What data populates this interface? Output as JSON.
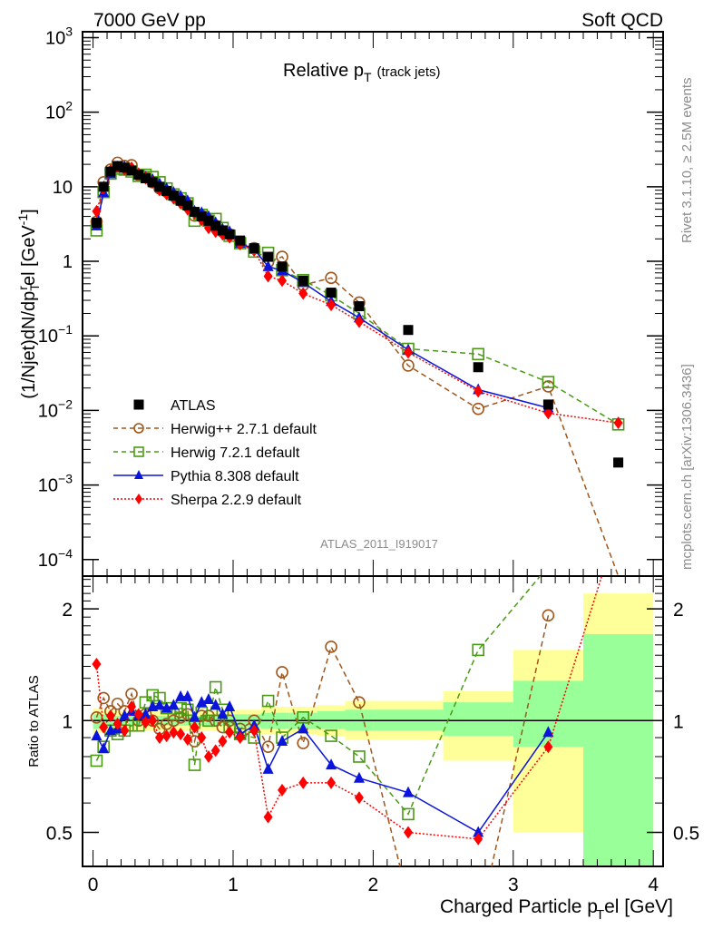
{
  "header": {
    "left": "7000 GeV pp",
    "right": "Soft QCD"
  },
  "side_labels": {
    "rivet": "Rivet 3.1.10, ≥ 2.5M events",
    "mcplots": "mcplots.cern.ch [arXiv:1306.3436]"
  },
  "chart_data": [
    {
      "type": "scatter",
      "panel": "main",
      "title": "Relative p_T (track jets)",
      "title_main": "Relative p",
      "title_sub": "T",
      "title_suffix": "(track jets)",
      "ylabel": "(1/Njet)dN/dp_T^rel [GeV^-1]",
      "yscale": "log",
      "ylim": [
        6e-05,
        1200
      ],
      "xlim": [
        -0.075,
        4.07
      ],
      "yticks": [
        {
          "v": 1000,
          "base": "10",
          "exp": "3"
        },
        {
          "v": 100,
          "base": "10",
          "exp": "2"
        },
        {
          "v": 10,
          "base": "10",
          "exp": ""
        },
        {
          "v": 1,
          "base": "1",
          "exp": ""
        },
        {
          "v": 0.1,
          "base": "10",
          "exp": "−1"
        },
        {
          "v": 0.01,
          "base": "10",
          "exp": "−2"
        },
        {
          "v": 0.001,
          "base": "10",
          "exp": "−3"
        },
        {
          "v": 0.0001,
          "base": "10",
          "exp": "−4"
        }
      ],
      "analysis_label": "ATLAS_2011_I919017",
      "legend_position": "bottom-left",
      "series": [
        {
          "name": "ATLAS",
          "style": "data",
          "color": "#000000",
          "x": [
            0.025,
            0.075,
            0.125,
            0.175,
            0.225,
            0.275,
            0.325,
            0.375,
            0.425,
            0.475,
            0.525,
            0.575,
            0.625,
            0.675,
            0.725,
            0.775,
            0.825,
            0.875,
            0.925,
            0.975,
            1.05,
            1.15,
            1.25,
            1.35,
            1.5,
            1.7,
            1.9,
            2.25,
            2.75,
            3.25,
            3.75
          ],
          "y": [
            3.3,
            10.0,
            16.0,
            19.0,
            18.0,
            16.5,
            14.5,
            13.0,
            11.5,
            10.0,
            8.8,
            7.6,
            6.5,
            5.6,
            4.6,
            4.0,
            3.5,
            3.0,
            2.6,
            2.3,
            1.9,
            1.5,
            1.15,
            0.85,
            0.55,
            0.38,
            0.25,
            0.12,
            0.038,
            0.012,
            0.002
          ]
        },
        {
          "name": "Herwig++ 2.7.1 default",
          "style": "circle-dashed",
          "color": "#a0561a",
          "x": [
            0.025,
            0.075,
            0.125,
            0.175,
            0.225,
            0.275,
            0.325,
            0.375,
            0.425,
            0.475,
            0.525,
            0.575,
            0.625,
            0.675,
            0.725,
            0.775,
            0.825,
            0.875,
            0.925,
            0.975,
            1.05,
            1.15,
            1.25,
            1.35,
            1.5,
            1.7,
            1.9,
            2.25,
            2.75,
            3.25,
            3.75
          ],
          "y": [
            3.4,
            11.5,
            17.0,
            21.0,
            19.0,
            19.5,
            14.5,
            13.5,
            11.5,
            9.5,
            8.6,
            7.6,
            6.6,
            5.8,
            4.1,
            4.1,
            3.6,
            3.0,
            2.5,
            2.3,
            1.8,
            1.5,
            0.98,
            1.15,
            0.48,
            0.6,
            0.28,
            0.04,
            0.0105,
            0.021,
            2.5e-06
          ]
        },
        {
          "name": "Herwig 7.2.1 default",
          "style": "square-dashed",
          "color": "#4a9a14",
          "x": [
            0.025,
            0.075,
            0.125,
            0.175,
            0.225,
            0.275,
            0.325,
            0.375,
            0.425,
            0.475,
            0.525,
            0.575,
            0.625,
            0.675,
            0.725,
            0.775,
            0.825,
            0.875,
            0.925,
            0.975,
            1.05,
            1.15,
            1.25,
            1.35,
            1.5,
            1.7,
            1.9,
            2.25,
            2.75,
            3.25,
            3.75
          ],
          "y": [
            2.6,
            8.5,
            15.0,
            17.5,
            17.0,
            16.0,
            14.0,
            14.5,
            13.5,
            11.5,
            9.5,
            7.9,
            7.0,
            6.0,
            3.5,
            4.2,
            3.5,
            3.7,
            2.8,
            2.2,
            1.75,
            1.35,
            1.3,
            0.76,
            0.56,
            0.35,
            0.2,
            0.067,
            0.057,
            0.024,
            0.0065
          ]
        },
        {
          "name": "Pythia 8.308 default",
          "style": "triangle-solid",
          "color": "#0a14dc",
          "x": [
            0.025,
            0.075,
            0.125,
            0.175,
            0.225,
            0.275,
            0.325,
            0.375,
            0.425,
            0.475,
            0.525,
            0.575,
            0.625,
            0.675,
            0.725,
            0.775,
            0.825,
            0.875,
            0.925,
            0.975,
            1.05,
            1.15,
            1.25,
            1.35,
            1.5,
            1.7,
            1.9,
            2.25,
            2.75,
            3.25
          ],
          "y": [
            3.0,
            8.4,
            15.0,
            18.0,
            18.5,
            17.5,
            15.0,
            13.5,
            12.5,
            11.0,
            9.5,
            8.4,
            7.5,
            6.5,
            4.7,
            4.5,
            4.0,
            3.3,
            2.7,
            2.5,
            1.75,
            1.45,
            0.85,
            0.75,
            0.52,
            0.29,
            0.175,
            0.065,
            0.019,
            0.0108
          ]
        },
        {
          "name": "Sherpa 2.2.9 default",
          "style": "diamond-dotted",
          "color": "#ff0000",
          "x": [
            0.025,
            0.075,
            0.125,
            0.175,
            0.225,
            0.275,
            0.325,
            0.375,
            0.425,
            0.475,
            0.525,
            0.575,
            0.625,
            0.675,
            0.725,
            0.775,
            0.825,
            0.875,
            0.925,
            0.975,
            1.05,
            1.15,
            1.25,
            1.35,
            1.5,
            1.7,
            1.9,
            2.25,
            2.75,
            3.25,
            3.75
          ],
          "y": [
            4.7,
            9.6,
            16.5,
            18.5,
            17.0,
            18.0,
            15.0,
            13.0,
            11.5,
            9.0,
            8.0,
            7.0,
            6.0,
            5.0,
            4.4,
            3.6,
            2.8,
            2.5,
            2.3,
            2.1,
            1.7,
            1.4,
            0.63,
            0.55,
            0.37,
            0.26,
            0.155,
            0.06,
            0.018,
            0.0092,
            0.0068
          ]
        }
      ]
    },
    {
      "type": "scatter",
      "panel": "ratio",
      "ylabel": "Ratio to ATLAS",
      "xlabel": "Charged Particle p_T^rel [GeV]",
      "xlabel_main": "Charged Particle p",
      "xlabel_sub": "T",
      "xlabel_suffix": "el [GeV]",
      "yscale": "log",
      "ylim": [
        0.405,
        2.45
      ],
      "xlim": [
        -0.075,
        4.07
      ],
      "xticks": [
        0,
        1,
        2,
        3,
        4
      ],
      "xtick_labels": [
        "0",
        "1",
        "2",
        "3",
        "4"
      ],
      "yticks": [
        2,
        1,
        0.5
      ],
      "ytick_labels": [
        "2",
        "1",
        "0.5"
      ],
      "reference_line": 1,
      "bands": {
        "edges": [
          0,
          0.05,
          0.1,
          0.15,
          0.2,
          0.25,
          0.3,
          0.35,
          0.4,
          0.45,
          0.5,
          0.55,
          0.6,
          0.65,
          0.7,
          0.75,
          0.8,
          0.85,
          0.9,
          0.95,
          1.0,
          1.1,
          1.2,
          1.3,
          1.4,
          1.6,
          1.8,
          2.0,
          2.5,
          3.0,
          3.5,
          4.0
        ],
        "inner_color": "#99ff99",
        "outer_color": "#ffff99",
        "inner": [
          [
            0.95,
            1.04
          ],
          [
            0.96,
            1.04
          ],
          [
            0.96,
            1.04
          ],
          [
            0.97,
            1.03
          ],
          [
            0.97,
            1.03
          ],
          [
            0.97,
            1.03
          ],
          [
            0.97,
            1.03
          ],
          [
            0.97,
            1.03
          ],
          [
            0.97,
            1.03
          ],
          [
            0.97,
            1.03
          ],
          [
            0.97,
            1.03
          ],
          [
            0.97,
            1.03
          ],
          [
            0.97,
            1.03
          ],
          [
            0.97,
            1.03
          ],
          [
            0.97,
            1.03
          ],
          [
            0.97,
            1.03
          ],
          [
            0.97,
            1.03
          ],
          [
            0.97,
            1.03
          ],
          [
            0.97,
            1.03
          ],
          [
            0.97,
            1.03
          ],
          [
            0.96,
            1.04
          ],
          [
            0.96,
            1.04
          ],
          [
            0.95,
            1.05
          ],
          [
            0.95,
            1.05
          ],
          [
            0.95,
            1.05
          ],
          [
            0.95,
            1.06
          ],
          [
            0.94,
            1.07
          ],
          [
            0.94,
            1.07
          ],
          [
            0.91,
            1.12
          ],
          [
            0.85,
            1.28
          ],
          [
            0.36,
            1.71
          ]
        ],
        "outer": [
          [
            0.92,
            1.08
          ],
          [
            0.93,
            1.07
          ],
          [
            0.93,
            1.07
          ],
          [
            0.94,
            1.06
          ],
          [
            0.94,
            1.06
          ],
          [
            0.94,
            1.06
          ],
          [
            0.94,
            1.06
          ],
          [
            0.94,
            1.06
          ],
          [
            0.94,
            1.06
          ],
          [
            0.94,
            1.06
          ],
          [
            0.94,
            1.06
          ],
          [
            0.94,
            1.06
          ],
          [
            0.94,
            1.06
          ],
          [
            0.94,
            1.06
          ],
          [
            0.94,
            1.06
          ],
          [
            0.94,
            1.06
          ],
          [
            0.94,
            1.06
          ],
          [
            0.94,
            1.06
          ],
          [
            0.94,
            1.06
          ],
          [
            0.94,
            1.06
          ],
          [
            0.93,
            1.07
          ],
          [
            0.93,
            1.07
          ],
          [
            0.92,
            1.09
          ],
          [
            0.92,
            1.09
          ],
          [
            0.92,
            1.09
          ],
          [
            0.91,
            1.1
          ],
          [
            0.89,
            1.13
          ],
          [
            0.89,
            1.13
          ],
          [
            0.78,
            1.2
          ],
          [
            0.5,
            1.55
          ],
          [
            0.36,
            2.2
          ]
        ]
      },
      "series": [
        {
          "name": "Herwig++ 2.7.1 default",
          "color": "#a0561a",
          "x": [
            0.025,
            0.075,
            0.125,
            0.175,
            0.225,
            0.275,
            0.325,
            0.375,
            0.425,
            0.475,
            0.525,
            0.575,
            0.625,
            0.675,
            0.725,
            0.775,
            0.825,
            0.875,
            0.925,
            0.975,
            1.05,
            1.15,
            1.25,
            1.35,
            1.5,
            1.7,
            1.9,
            2.25,
            2.75,
            3.25
          ],
          "y": [
            1.02,
            1.15,
            1.06,
            1.11,
            1.06,
            1.18,
            1.0,
            1.04,
            1.0,
            0.95,
            0.98,
            1.0,
            1.02,
            1.04,
            0.88,
            1.03,
            1.03,
            1.0,
            0.96,
            1.0,
            0.95,
            1.0,
            0.85,
            1.35,
            0.87,
            1.58,
            1.12,
            0.33,
            0.28,
            1.92
          ]
        },
        {
          "name": "Herwig 7.2.1 default",
          "color": "#4a9a14",
          "x": [
            0.025,
            0.075,
            0.125,
            0.175,
            0.225,
            0.275,
            0.325,
            0.375,
            0.425,
            0.475,
            0.525,
            0.575,
            0.625,
            0.675,
            0.725,
            0.775,
            0.825,
            0.875,
            0.925,
            0.975,
            1.05,
            1.15,
            1.25,
            1.35,
            1.5,
            1.7,
            1.9,
            2.25,
            2.75,
            3.25,
            3.75
          ],
          "y": [
            0.78,
            0.85,
            0.94,
            0.92,
            0.94,
            0.97,
            0.97,
            1.12,
            1.17,
            1.15,
            1.08,
            1.04,
            1.08,
            1.07,
            0.76,
            1.05,
            1.0,
            1.23,
            1.07,
            0.96,
            0.92,
            0.9,
            1.13,
            0.9,
            1.02,
            0.91,
            0.8,
            0.56,
            1.55,
            2.6,
            3.2
          ]
        },
        {
          "name": "Pythia 8.308 default",
          "color": "#0a14dc",
          "x": [
            0.025,
            0.075,
            0.125,
            0.175,
            0.225,
            0.275,
            0.325,
            0.375,
            0.425,
            0.475,
            0.525,
            0.575,
            0.625,
            0.675,
            0.725,
            0.775,
            0.825,
            0.875,
            0.925,
            0.975,
            1.05,
            1.15,
            1.25,
            1.35,
            1.5,
            1.7,
            1.9,
            2.25,
            2.75,
            3.25
          ],
          "y": [
            0.91,
            0.84,
            0.94,
            0.95,
            1.03,
            1.06,
            1.03,
            1.04,
            1.09,
            1.1,
            1.08,
            1.1,
            1.16,
            1.16,
            1.02,
            1.12,
            1.14,
            1.1,
            1.04,
            1.09,
            0.92,
            0.97,
            0.74,
            0.88,
            0.95,
            0.76,
            0.7,
            0.64,
            0.5,
            0.93
          ]
        },
        {
          "name": "Sherpa 2.2.9 default",
          "color": "#ff0000",
          "x": [
            0.025,
            0.075,
            0.125,
            0.175,
            0.225,
            0.275,
            0.325,
            0.375,
            0.425,
            0.475,
            0.525,
            0.575,
            0.625,
            0.675,
            0.725,
            0.775,
            0.825,
            0.875,
            0.925,
            0.975,
            1.05,
            1.15,
            1.25,
            1.35,
            1.5,
            1.7,
            1.9,
            2.25,
            2.75,
            3.25,
            3.75
          ],
          "y": [
            1.42,
            0.96,
            1.03,
            0.98,
            0.94,
            1.09,
            1.04,
            0.99,
            1.0,
            0.9,
            0.91,
            0.93,
            0.92,
            0.89,
            0.96,
            0.9,
            0.8,
            0.83,
            0.88,
            0.93,
            0.9,
            0.94,
            0.55,
            0.65,
            0.68,
            0.68,
            0.62,
            0.5,
            0.48,
            0.85,
            3.4
          ]
        }
      ]
    }
  ]
}
